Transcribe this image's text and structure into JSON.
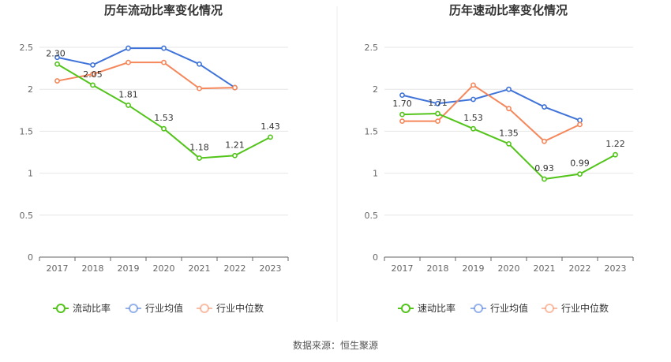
{
  "source_text": "数据来源：恒生聚源",
  "colors": {
    "green": "#52c41a",
    "blue": "#3f73d9",
    "orange": "#f5875b",
    "grid": "#e6e6e6",
    "axis": "#666666"
  },
  "chart_data": [
    {
      "type": "line",
      "title": "历年流动比率变化情况",
      "categories": [
        "2017",
        "2018",
        "2019",
        "2020",
        "2021",
        "2022",
        "2023"
      ],
      "ylim": [
        0,
        2.5
      ],
      "yticks": [
        "0",
        "0.5",
        "1",
        "1.5",
        "2",
        "2.5"
      ],
      "grid": true,
      "legend_position": "bottom",
      "series": [
        {
          "name": "流动比率",
          "color": "#52c41a",
          "values": [
            2.3,
            2.05,
            1.81,
            1.53,
            1.18,
            1.21,
            1.43
          ],
          "labels": [
            "2.30",
            "2.05",
            "1.81",
            "1.53",
            "1.18",
            "1.21",
            "1.43"
          ]
        },
        {
          "name": "行业均值",
          "color": "#3f73d9",
          "values": [
            2.38,
            2.29,
            2.49,
            2.49,
            2.3,
            2.02,
            null
          ]
        },
        {
          "name": "行业中位数",
          "color": "#f5875b",
          "values": [
            2.1,
            2.18,
            2.32,
            2.32,
            2.01,
            2.02,
            null
          ]
        }
      ]
    },
    {
      "type": "line",
      "title": "历年速动比率变化情况",
      "categories": [
        "2017",
        "2018",
        "2019",
        "2020",
        "2021",
        "2022",
        "2023"
      ],
      "ylim": [
        0,
        2.5
      ],
      "yticks": [
        "0",
        "0.5",
        "1",
        "1.5",
        "2",
        "2.5"
      ],
      "grid": true,
      "legend_position": "bottom",
      "series": [
        {
          "name": "速动比率",
          "color": "#52c41a",
          "values": [
            1.7,
            1.71,
            1.53,
            1.35,
            0.93,
            0.99,
            1.22
          ],
          "labels": [
            "1.70",
            "1.71",
            "1.53",
            "1.35",
            "0.93",
            "0.99",
            "1.22"
          ]
        },
        {
          "name": "行业均值",
          "color": "#3f73d9",
          "values": [
            1.93,
            1.83,
            1.88,
            2.0,
            1.79,
            1.63,
            null
          ]
        },
        {
          "name": "行业中位数",
          "color": "#f5875b",
          "values": [
            1.62,
            1.62,
            2.05,
            1.77,
            1.38,
            1.58,
            null
          ]
        }
      ]
    }
  ]
}
